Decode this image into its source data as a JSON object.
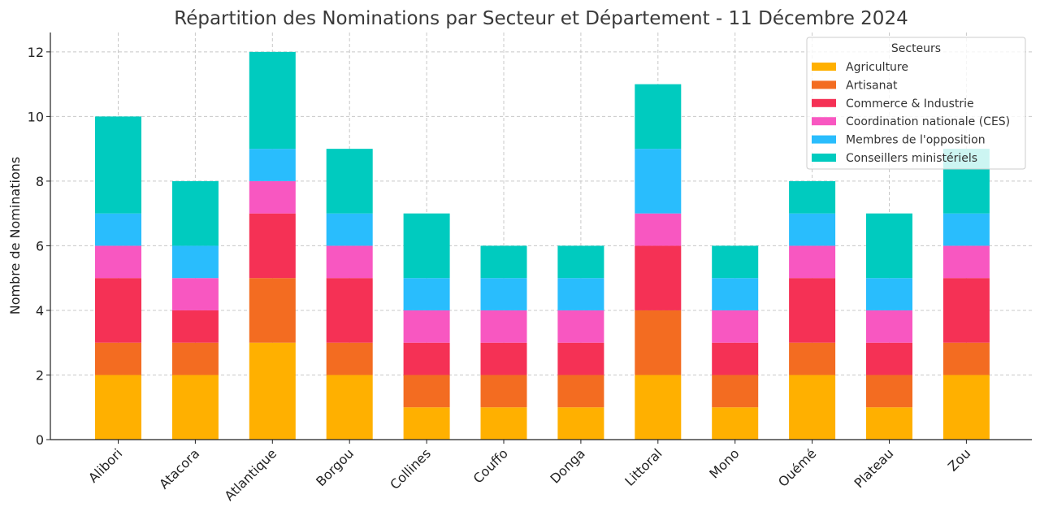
{
  "chart_data": {
    "type": "bar",
    "stacked": true,
    "title": "Répartition des Nominations par Secteur et Département - 11 Décembre 2024",
    "xlabel": "",
    "ylabel": "Nombre de Nominations",
    "ylim": [
      0,
      12.6
    ],
    "yticks": [
      0,
      2,
      4,
      6,
      8,
      10,
      12
    ],
    "grid": true,
    "legend": {
      "title": "Secteurs",
      "position": "top-right"
    },
    "categories": [
      "Alibori",
      "Atacora",
      "Atlantique",
      "Borgou",
      "Collines",
      "Couffo",
      "Donga",
      "Littoral",
      "Mono",
      "Ouémé",
      "Plateau",
      "Zou"
    ],
    "series": [
      {
        "name": "Agriculture",
        "color": "#FFB000",
        "values": [
          2,
          2,
          3,
          2,
          1,
          1,
          1,
          2,
          1,
          2,
          1,
          2
        ]
      },
      {
        "name": "Artisanat",
        "color": "#F36C21",
        "values": [
          1,
          1,
          2,
          1,
          1,
          1,
          1,
          2,
          1,
          1,
          1,
          1
        ]
      },
      {
        "name": "Commerce & Industrie",
        "color": "#F53155",
        "values": [
          2,
          1,
          2,
          2,
          1,
          1,
          1,
          2,
          1,
          2,
          1,
          2
        ]
      },
      {
        "name": "Coordination nationale (CES)",
        "color": "#F857C1",
        "values": [
          1,
          1,
          1,
          1,
          1,
          1,
          1,
          1,
          1,
          1,
          1,
          1
        ]
      },
      {
        "name": "Membres de l'opposition",
        "color": "#29BDFD",
        "values": [
          1,
          1,
          1,
          1,
          1,
          1,
          1,
          2,
          1,
          1,
          1,
          1
        ]
      },
      {
        "name": "Conseillers ministériels",
        "color": "#00CBBF",
        "values": [
          3,
          2,
          3,
          2,
          2,
          1,
          1,
          2,
          1,
          1,
          2,
          2
        ]
      }
    ]
  }
}
